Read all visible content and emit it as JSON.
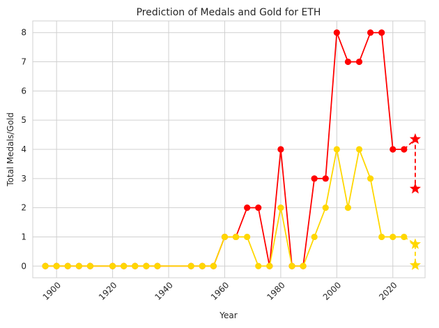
{
  "chart_data": {
    "type": "line",
    "title": "Prediction of Medals and Gold for ETH",
    "xlabel": "Year",
    "ylabel": "Total Medals/Gold",
    "xlim": [
      1891.5,
      2031.5
    ],
    "ylim": [
      -0.4,
      8.4
    ],
    "grid": true,
    "x_ticks": [
      1900,
      1920,
      1940,
      1960,
      1980,
      2000,
      2020
    ],
    "y_ticks": [
      0,
      1,
      2,
      3,
      4,
      5,
      6,
      7,
      8
    ],
    "series": [
      {
        "color": "#ff0000",
        "x": [
          1896,
          1900,
          1904,
          1908,
          1912,
          1920,
          1924,
          1928,
          1932,
          1936,
          1948,
          1952,
          1956,
          1960,
          1964,
          1968,
          1972,
          1976,
          1980,
          1984,
          1988,
          1992,
          1996,
          2000,
          2004,
          2008,
          2012,
          2016,
          2020,
          2024
        ],
        "values": [
          0,
          0,
          0,
          0,
          0,
          0,
          0,
          0,
          0,
          0,
          0,
          0,
          0,
          1,
          1,
          2,
          2,
          0,
          4,
          0,
          0,
          3,
          3,
          8,
          7,
          7,
          8,
          8,
          4,
          4
        ],
        "prediction": {
          "x": [
            2024,
            2028,
            2028
          ],
          "values": [
            4,
            4.35,
            2.65
          ]
        }
      },
      {
        "color": "#ffd700",
        "x": [
          1896,
          1900,
          1904,
          1908,
          1912,
          1920,
          1924,
          1928,
          1932,
          1936,
          1948,
          1952,
          1956,
          1960,
          1964,
          1968,
          1972,
          1976,
          1980,
          1984,
          1988,
          1992,
          1996,
          2000,
          2004,
          2008,
          2012,
          2016,
          2020,
          2024
        ],
        "values": [
          0,
          0,
          0,
          0,
          0,
          0,
          0,
          0,
          0,
          0,
          0,
          0,
          0,
          1,
          1,
          1,
          0,
          0,
          2,
          0,
          0,
          1,
          2,
          4,
          2,
          4,
          3,
          1,
          1,
          1
        ],
        "prediction": {
          "x": [
            2024,
            2028,
            2028
          ],
          "values": [
            1,
            0.75,
            0.03
          ]
        }
      }
    ]
  }
}
